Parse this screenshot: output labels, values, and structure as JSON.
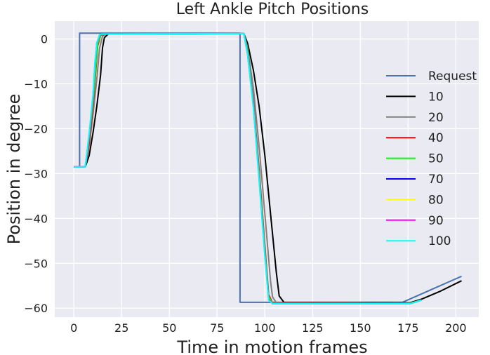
{
  "chart_data": {
    "type": "line",
    "title": "Left Ankle Pitch Positions",
    "xlabel": "Time in motion frames",
    "ylabel": "Position in degree",
    "xlim": [
      -10,
      212
    ],
    "ylim": [
      -62,
      4
    ],
    "xticks": [
      0,
      25,
      50,
      75,
      100,
      125,
      150,
      175,
      200
    ],
    "yticks": [
      0,
      -10,
      -20,
      -30,
      -40,
      -50,
      -60
    ],
    "grid": true,
    "legend_placement": "right",
    "series": [
      {
        "name": "Request",
        "color": "#4c72b0",
        "points": [
          [
            0,
            -28.5
          ],
          [
            3,
            -28.5
          ],
          [
            3,
            1.3
          ],
          [
            87,
            1.3
          ],
          [
            87,
            -58.7
          ],
          [
            172,
            -58.7
          ],
          [
            203,
            -52.9
          ]
        ]
      },
      {
        "name": "10",
        "color": "#000000",
        "points": [
          [
            0,
            -28.5
          ],
          [
            6,
            -28.5
          ],
          [
            8,
            -26
          ],
          [
            10,
            -21
          ],
          [
            12,
            -15
          ],
          [
            14,
            -8
          ],
          [
            15,
            -2
          ],
          [
            16,
            0.3
          ],
          [
            18,
            1.1
          ],
          [
            89,
            1.2
          ],
          [
            91,
            -1
          ],
          [
            94,
            -7
          ],
          [
            97,
            -15
          ],
          [
            100,
            -26
          ],
          [
            103,
            -39
          ],
          [
            106,
            -52
          ],
          [
            107.5,
            -57.3
          ],
          [
            110,
            -58.7
          ],
          [
            176,
            -58.8
          ],
          [
            182,
            -58
          ],
          [
            192,
            -56.2
          ],
          [
            203,
            -53.9
          ]
        ]
      },
      {
        "name": "20",
        "color": "#808080",
        "points": [
          [
            0,
            -28.5
          ],
          [
            6,
            -28.5
          ],
          [
            8,
            -24
          ],
          [
            10,
            -17
          ],
          [
            12,
            -9
          ],
          [
            13.5,
            -2
          ],
          [
            15,
            0.6
          ],
          [
            17,
            1.1
          ],
          [
            89,
            1.2
          ],
          [
            91,
            -2
          ],
          [
            94,
            -11
          ],
          [
            97,
            -24
          ],
          [
            100,
            -39
          ],
          [
            103,
            -54
          ],
          [
            104,
            -57.5
          ],
          [
            106,
            -58.8
          ],
          [
            176,
            -58.9
          ],
          [
            182,
            -58.2
          ]
        ]
      },
      {
        "name": "40",
        "color": "#ff0000",
        "points": [
          [
            0,
            -28.5
          ],
          [
            6,
            -28.5
          ],
          [
            8,
            -23
          ],
          [
            10,
            -15
          ],
          [
            11.5,
            -7
          ],
          [
            12.5,
            -1.5
          ],
          [
            14,
            0.8
          ],
          [
            16,
            1.1
          ],
          [
            89,
            1.2
          ],
          [
            91,
            -3
          ],
          [
            94,
            -14
          ],
          [
            97,
            -29
          ],
          [
            100,
            -46
          ],
          [
            102,
            -57
          ],
          [
            104,
            -58.8
          ],
          [
            176,
            -58.9
          ],
          [
            182,
            -58.2
          ]
        ]
      },
      {
        "name": "50",
        "color": "#00ff00",
        "points": [
          [
            0,
            -28.5
          ],
          [
            6,
            -28.5
          ],
          [
            8,
            -22
          ],
          [
            10,
            -14
          ],
          [
            11.5,
            -6
          ],
          [
            12.5,
            -1
          ],
          [
            14,
            0.9
          ],
          [
            16,
            1.1
          ],
          [
            89,
            1.2
          ],
          [
            91,
            -3
          ],
          [
            94,
            -14.5
          ],
          [
            97,
            -30
          ],
          [
            100,
            -47
          ],
          [
            102,
            -57.5
          ],
          [
            104,
            -58.9
          ],
          [
            176,
            -58.9
          ],
          [
            182,
            -58.2
          ]
        ]
      },
      {
        "name": "70",
        "color": "#0000ff",
        "points": [
          [
            0,
            -28.5
          ],
          [
            6,
            -28.5
          ],
          [
            8,
            -21.5
          ],
          [
            10,
            -13
          ],
          [
            11,
            -6
          ],
          [
            12,
            -1
          ],
          [
            13.5,
            0.9
          ],
          [
            15,
            1.1
          ],
          [
            89,
            1.2
          ],
          [
            91,
            -3.5
          ],
          [
            94,
            -15
          ],
          [
            97,
            -31
          ],
          [
            100,
            -48
          ],
          [
            102,
            -58
          ],
          [
            104,
            -59
          ],
          [
            176,
            -59
          ],
          [
            182,
            -58.2
          ]
        ]
      },
      {
        "name": "80",
        "color": "#ffff00",
        "points": [
          [
            0,
            -28.5
          ],
          [
            6,
            -28.5
          ],
          [
            8,
            -21.5
          ],
          [
            10,
            -13
          ],
          [
            11,
            -6
          ],
          [
            12,
            -1
          ],
          [
            13.5,
            0.9
          ],
          [
            15,
            1.1
          ],
          [
            89,
            1.2
          ],
          [
            91,
            -3.5
          ],
          [
            94,
            -15
          ],
          [
            97,
            -31
          ],
          [
            100,
            -48
          ],
          [
            102,
            -58
          ],
          [
            104,
            -59
          ],
          [
            176,
            -59
          ],
          [
            182,
            -58.2
          ]
        ]
      },
      {
        "name": "90",
        "color": "#ff00ff",
        "points": [
          [
            0,
            -28.5
          ],
          [
            6,
            -28.5
          ],
          [
            8,
            -21.5
          ],
          [
            10,
            -13
          ],
          [
            11,
            -6
          ],
          [
            12,
            -1
          ],
          [
            13.5,
            0.9
          ],
          [
            15,
            1.1
          ],
          [
            89,
            1.2
          ],
          [
            91,
            -3.5
          ],
          [
            94,
            -15
          ],
          [
            97,
            -31
          ],
          [
            100,
            -48
          ],
          [
            102,
            -58
          ],
          [
            104,
            -59
          ],
          [
            176,
            -59
          ],
          [
            182,
            -58.2
          ]
        ]
      },
      {
        "name": "100",
        "color": "#00ffff",
        "points": [
          [
            0,
            -28.5
          ],
          [
            6,
            -28.5
          ],
          [
            8,
            -21
          ],
          [
            10,
            -12.5
          ],
          [
            11,
            -5.5
          ],
          [
            12,
            -0.8
          ],
          [
            13.5,
            1
          ],
          [
            15,
            1.1
          ],
          [
            89,
            1.2
          ],
          [
            91,
            -3.5
          ],
          [
            94,
            -15.5
          ],
          [
            97,
            -31.5
          ],
          [
            100,
            -48.5
          ],
          [
            102,
            -58.2
          ],
          [
            104,
            -59
          ],
          [
            176,
            -59
          ],
          [
            182,
            -58.2
          ]
        ]
      }
    ]
  }
}
